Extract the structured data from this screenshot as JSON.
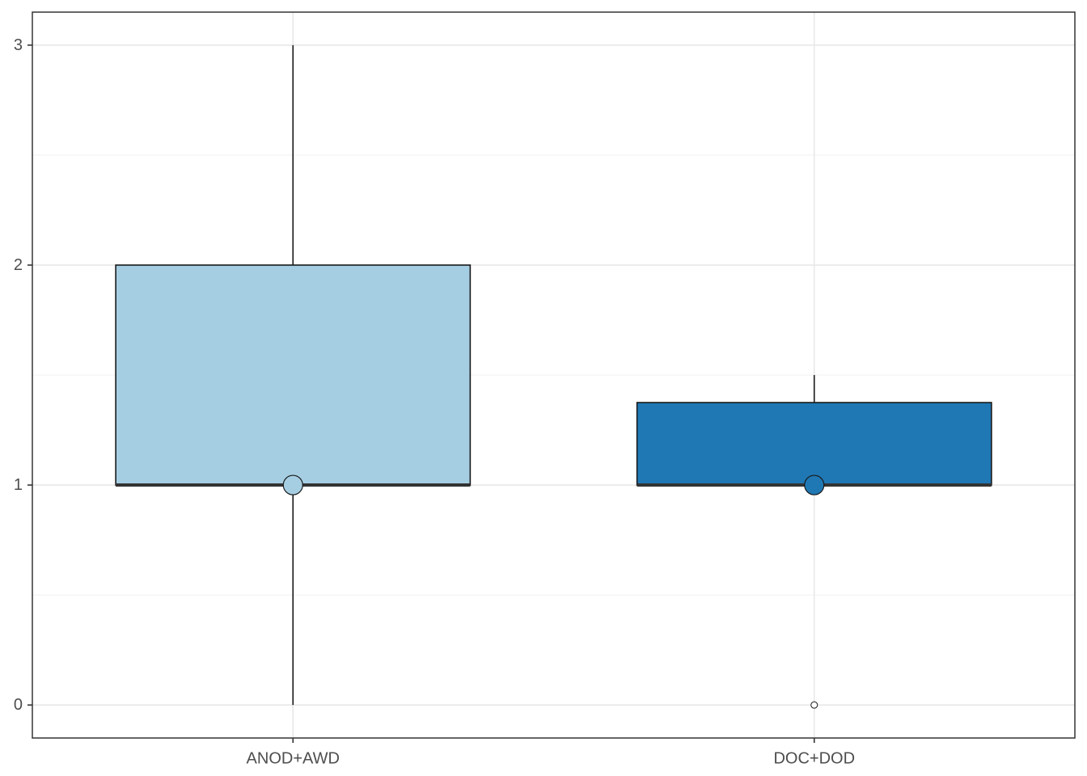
{
  "chart_data": {
    "type": "boxplot",
    "title": "",
    "xlabel": "",
    "ylabel": "",
    "categories": [
      "ANOD+AWD",
      "DOC+DOD"
    ],
    "ylim": [
      -0.15,
      3.15
    ],
    "yticks": [
      0,
      1,
      2,
      3
    ],
    "y_tick_labels": [
      "0",
      "1",
      "2",
      "3"
    ],
    "grid": true,
    "legend": "none",
    "boxes": [
      {
        "category": "ANOD+AWD",
        "whisker_low": 0,
        "q1": 1,
        "median": 1,
        "q3": 2,
        "whisker_high": 3,
        "mean": 1,
        "outliers": [],
        "color": "#a6cee3"
      },
      {
        "category": "DOC+DOD",
        "whisker_low": 1,
        "q1": 1,
        "median": 1,
        "q3": 1.375,
        "whisker_high": 1.5,
        "mean": 1,
        "outliers": [
          0
        ],
        "color": "#1f78b4"
      }
    ]
  }
}
